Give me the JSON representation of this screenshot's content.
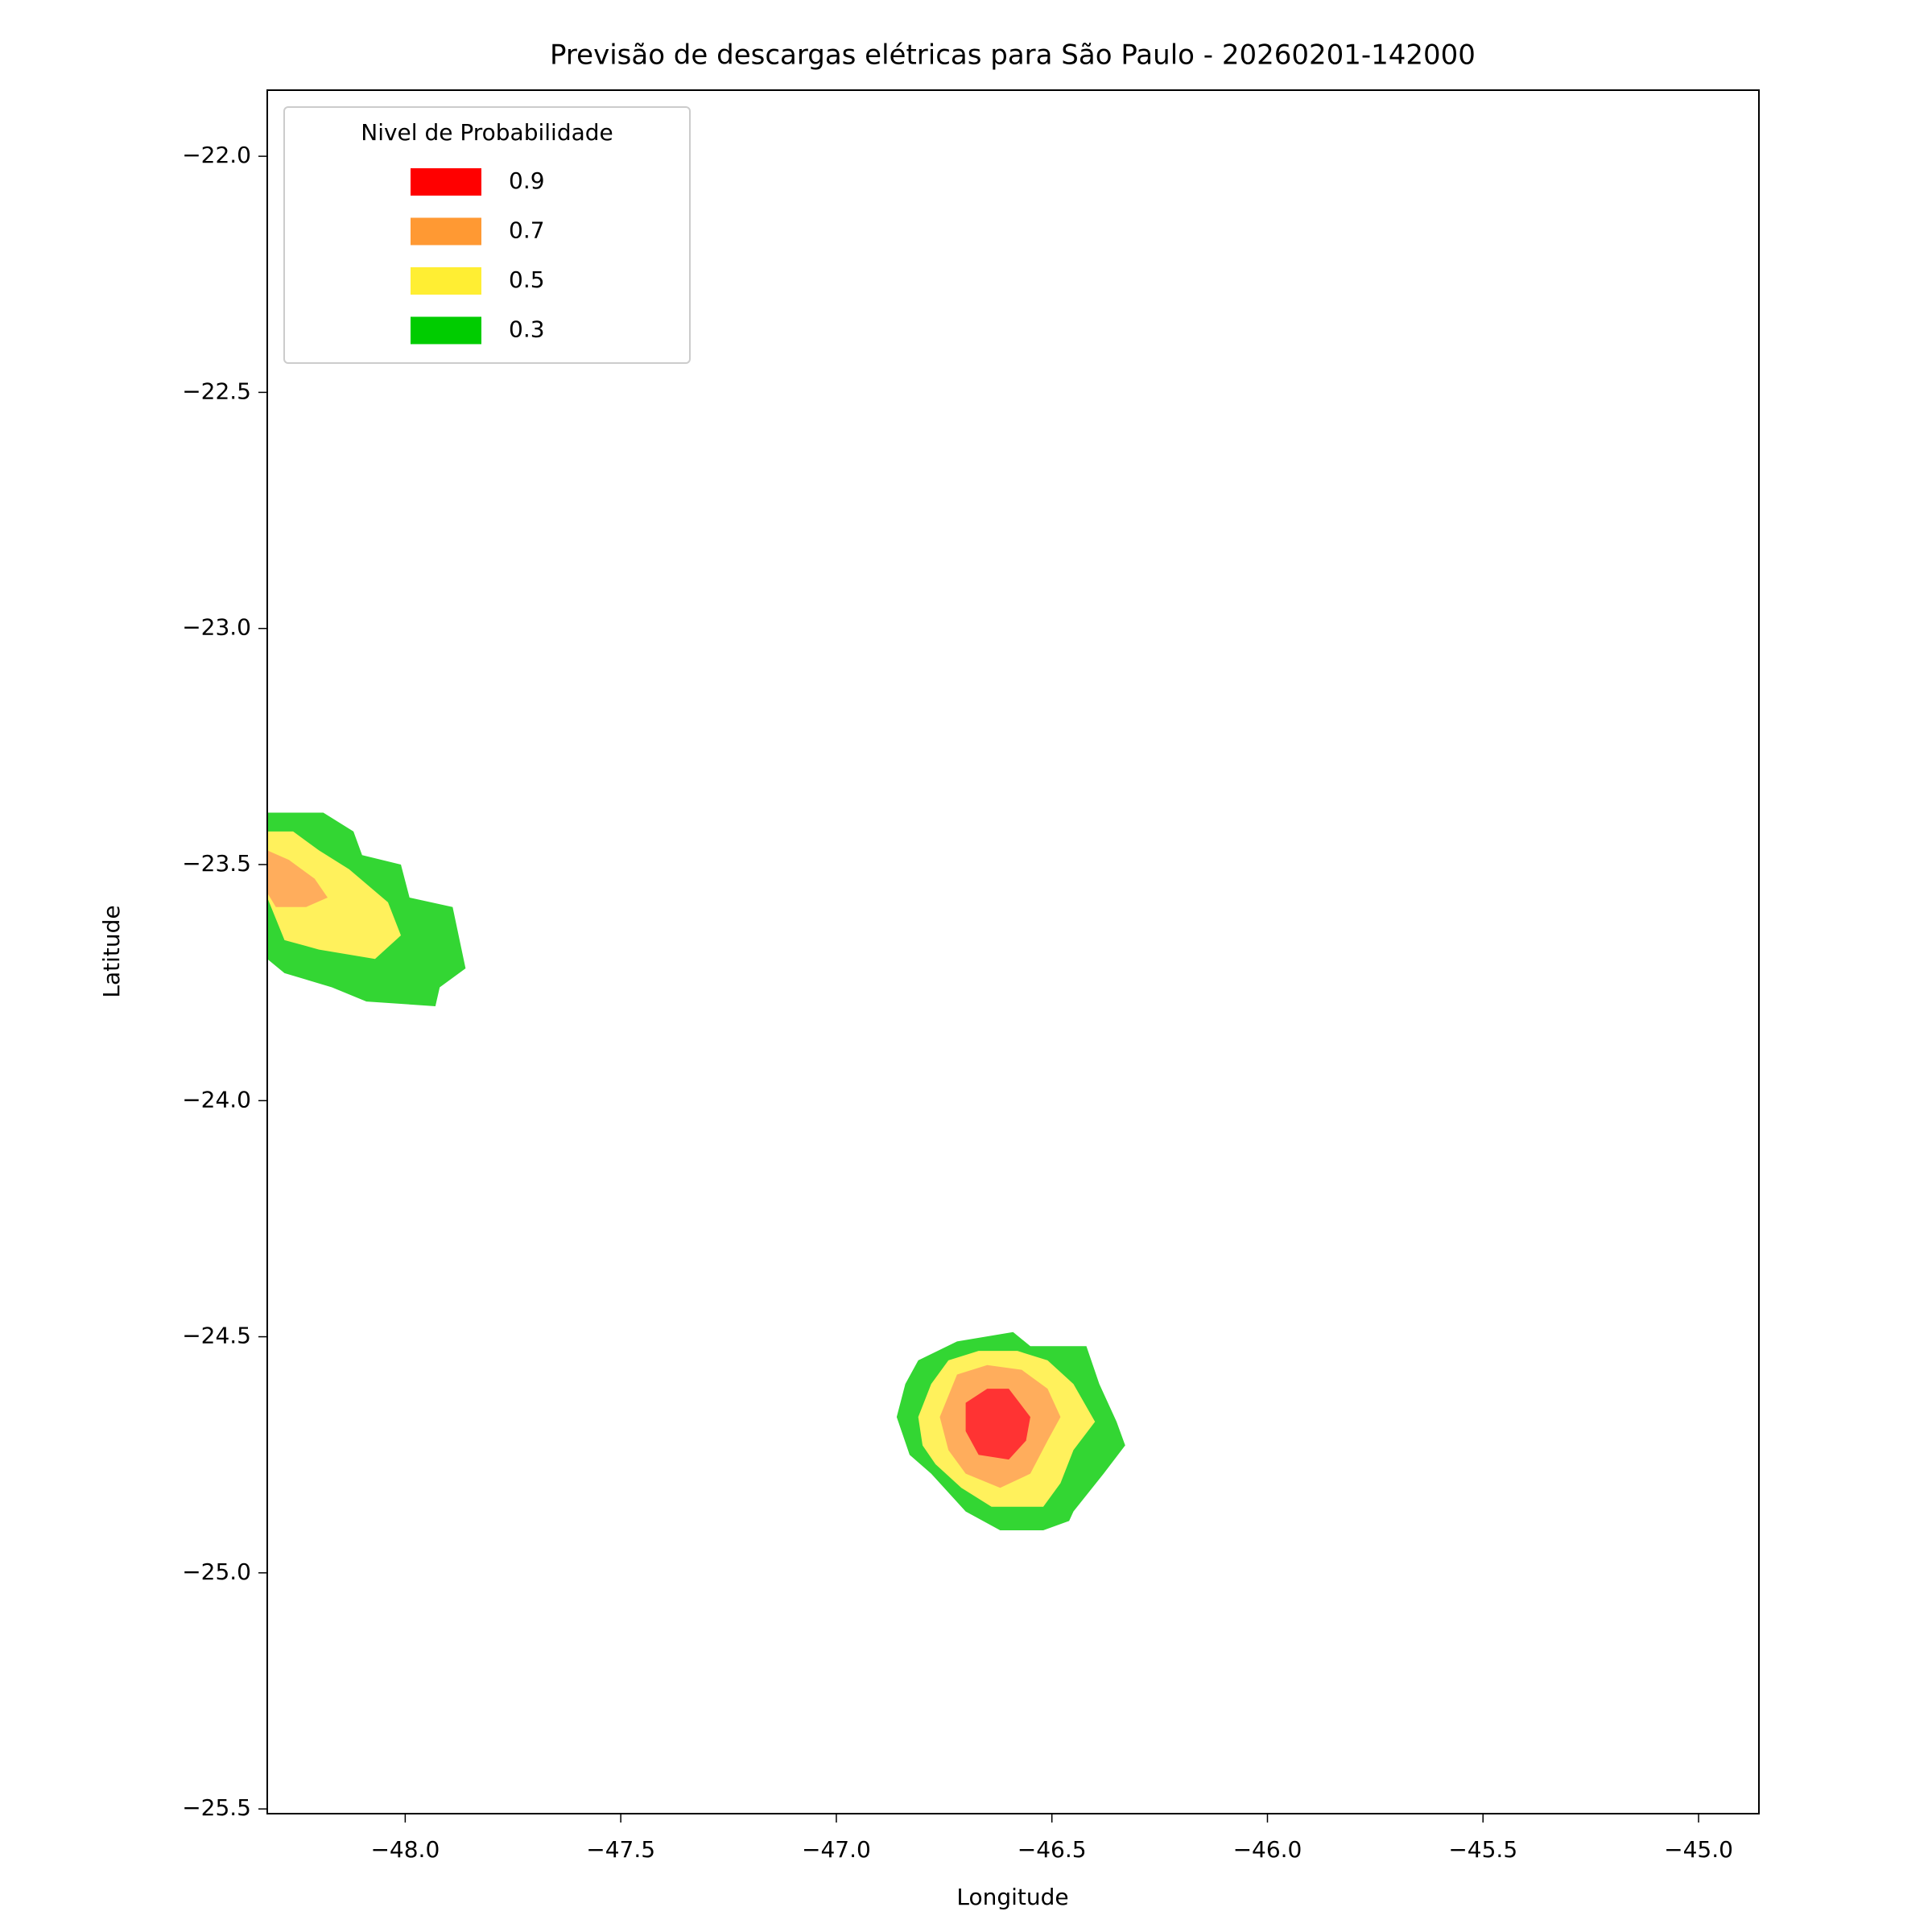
{
  "chart_data": {
    "type": "contour",
    "title": "Previsão de descargas elétricas para São Paulo - 20260201-142000",
    "x_label": "Longitude",
    "y_label": "Latitude",
    "legend_title": "Nivel de Probabilidade",
    "legend_position": "upper left",
    "alpha": 0.8,
    "xlim": [
      -48.32,
      -44.86
    ],
    "ylim": [
      -25.51,
      -21.86
    ],
    "xticks": [
      {
        "value": -48,
        "label": "−48.0"
      },
      {
        "value": -47.5,
        "label": "−47.5"
      },
      {
        "value": -47,
        "label": "−47.0"
      },
      {
        "value": -46.5,
        "label": "−46.5"
      },
      {
        "value": -46,
        "label": "−46.0"
      },
      {
        "value": -45.5,
        "label": "−45.5"
      },
      {
        "value": -45,
        "label": "−45.0"
      }
    ],
    "yticks": [
      {
        "value": -22,
        "label": "−22.0"
      },
      {
        "value": -22.5,
        "label": "−22.5"
      },
      {
        "value": -23,
        "label": "−23.0"
      },
      {
        "value": -23.5,
        "label": "−23.5"
      },
      {
        "value": -24,
        "label": "−24.0"
      },
      {
        "value": -24.5,
        "label": "−24.5"
      },
      {
        "value": -25,
        "label": "−25.0"
      },
      {
        "value": -25.5,
        "label": "−25.5"
      }
    ],
    "series": [
      {
        "name": "0.9",
        "color": "#ff0000",
        "regions": [
          [
            [
              -46.7,
              -24.64
            ],
            [
              -46.65,
              -24.61
            ],
            [
              -46.6,
              -24.61
            ],
            [
              -46.55,
              -24.67
            ],
            [
              -46.56,
              -24.72
            ],
            [
              -46.6,
              -24.76
            ],
            [
              -46.67,
              -24.75
            ],
            [
              -46.7,
              -24.7
            ]
          ]
        ]
      },
      {
        "name": "0.7",
        "color": "#ff9933",
        "regions": [
          [
            [
              -48.32,
              -23.47
            ],
            [
              -48.27,
              -23.49
            ],
            [
              -48.21,
              -23.53
            ],
            [
              -48.18,
              -23.57
            ],
            [
              -48.23,
              -23.59
            ],
            [
              -48.3,
              -23.59
            ],
            [
              -48.32,
              -23.56
            ]
          ],
          [
            [
              -46.72,
              -24.58
            ],
            [
              -46.65,
              -24.56
            ],
            [
              -46.57,
              -24.57
            ],
            [
              -46.51,
              -24.61
            ],
            [
              -46.48,
              -24.67
            ],
            [
              -46.51,
              -24.72
            ],
            [
              -46.55,
              -24.79
            ],
            [
              -46.62,
              -24.82
            ],
            [
              -46.7,
              -24.79
            ],
            [
              -46.74,
              -24.74
            ],
            [
              -46.76,
              -24.67
            ]
          ]
        ]
      },
      {
        "name": "0.5",
        "color": "#ffee33",
        "regions": [
          [
            [
              -48.32,
              -23.43
            ],
            [
              -48.26,
              -23.43
            ],
            [
              -48.2,
              -23.47
            ],
            [
              -48.13,
              -23.51
            ],
            [
              -48.04,
              -23.58
            ],
            [
              -48.01,
              -23.65
            ],
            [
              -48.07,
              -23.7
            ],
            [
              -48.2,
              -23.68
            ],
            [
              -48.28,
              -23.66
            ],
            [
              -48.32,
              -23.57
            ]
          ],
          [
            [
              -46.74,
              -24.55
            ],
            [
              -46.67,
              -24.53
            ],
            [
              -46.58,
              -24.53
            ],
            [
              -46.51,
              -24.55
            ],
            [
              -46.45,
              -24.6
            ],
            [
              -46.4,
              -24.68
            ],
            [
              -46.45,
              -24.74
            ],
            [
              -46.48,
              -24.81
            ],
            [
              -46.52,
              -24.86
            ],
            [
              -46.64,
              -24.86
            ],
            [
              -46.71,
              -24.82
            ],
            [
              -46.77,
              -24.77
            ],
            [
              -46.8,
              -24.73
            ],
            [
              -46.81,
              -24.67
            ],
            [
              -46.78,
              -24.6
            ]
          ]
        ]
      },
      {
        "name": "0.3",
        "color": "#00cc00",
        "regions": [
          [
            [
              -48.32,
              -23.39
            ],
            [
              -48.19,
              -23.39
            ],
            [
              -48.12,
              -23.43
            ],
            [
              -48.1,
              -23.48
            ],
            [
              -48.01,
              -23.5
            ],
            [
              -47.99,
              -23.57
            ],
            [
              -47.89,
              -23.59
            ],
            [
              -47.86,
              -23.72
            ],
            [
              -47.92,
              -23.76
            ],
            [
              -47.93,
              -23.8
            ],
            [
              -48.09,
              -23.79
            ],
            [
              -48.17,
              -23.76
            ],
            [
              -48.28,
              -23.73
            ],
            [
              -48.32,
              -23.7
            ]
          ],
          [
            [
              -46.81,
              -24.55
            ],
            [
              -46.72,
              -24.51
            ],
            [
              -46.59,
              -24.49
            ],
            [
              -46.55,
              -24.52
            ],
            [
              -46.42,
              -24.52
            ],
            [
              -46.39,
              -24.6
            ],
            [
              -46.35,
              -24.68
            ],
            [
              -46.33,
              -24.73
            ],
            [
              -46.38,
              -24.79
            ],
            [
              -46.45,
              -24.87
            ],
            [
              -46.46,
              -24.89
            ],
            [
              -46.52,
              -24.91
            ],
            [
              -46.62,
              -24.91
            ],
            [
              -46.7,
              -24.87
            ],
            [
              -46.78,
              -24.79
            ],
            [
              -46.83,
              -24.75
            ],
            [
              -46.86,
              -24.67
            ],
            [
              -46.84,
              -24.6
            ]
          ]
        ]
      }
    ]
  }
}
